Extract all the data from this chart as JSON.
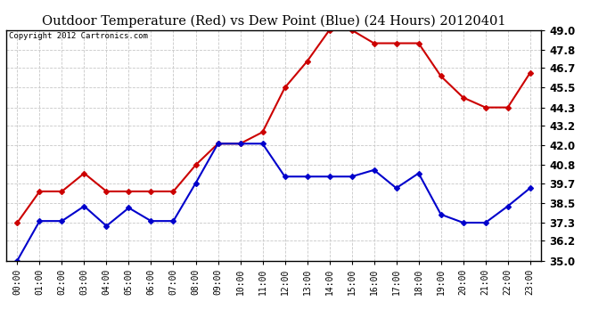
{
  "title": "Outdoor Temperature (Red) vs Dew Point (Blue) (24 Hours) 20120401",
  "copyright": "Copyright 2012 Cartronics.com",
  "hours": [
    "00:00",
    "01:00",
    "02:00",
    "03:00",
    "04:00",
    "05:00",
    "06:00",
    "07:00",
    "08:00",
    "09:00",
    "10:00",
    "11:00",
    "12:00",
    "13:00",
    "14:00",
    "15:00",
    "16:00",
    "17:00",
    "18:00",
    "19:00",
    "20:00",
    "21:00",
    "22:00",
    "23:00"
  ],
  "temperature": [
    37.3,
    39.2,
    39.2,
    40.3,
    39.2,
    39.2,
    39.2,
    39.2,
    40.8,
    42.1,
    42.1,
    42.8,
    45.5,
    47.1,
    49.0,
    49.0,
    48.2,
    48.2,
    48.2,
    46.2,
    44.9,
    44.3,
    44.3,
    46.4
  ],
  "dew_point": [
    35.0,
    37.4,
    37.4,
    38.3,
    37.1,
    38.2,
    37.4,
    37.4,
    39.7,
    42.1,
    42.1,
    42.1,
    40.1,
    40.1,
    40.1,
    40.1,
    40.5,
    39.4,
    40.3,
    37.8,
    37.3,
    37.3,
    38.3,
    39.4
  ],
  "temp_color": "#cc0000",
  "dew_color": "#0000cc",
  "bg_color": "#ffffff",
  "grid_color": "#c8c8c8",
  "ylim": [
    35.0,
    49.0
  ],
  "yticks": [
    35.0,
    36.2,
    37.3,
    38.5,
    39.7,
    40.8,
    42.0,
    43.2,
    44.3,
    45.5,
    46.7,
    47.8,
    49.0
  ],
  "title_fontsize": 10.5,
  "copyright_fontsize": 6.5,
  "tick_fontsize": 7,
  "ytick_fontsize": 8.5,
  "marker": "D",
  "marker_size": 3,
  "linewidth": 1.5
}
